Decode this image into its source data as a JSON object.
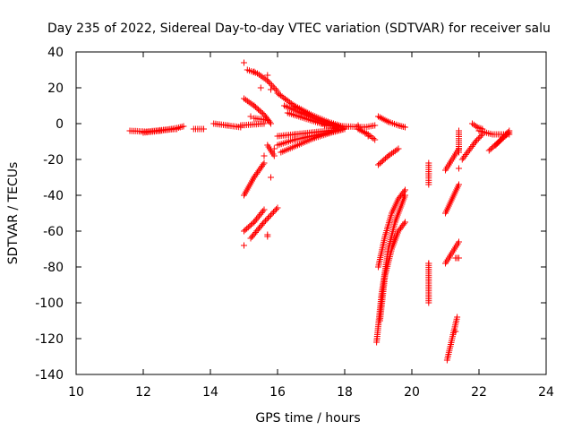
{
  "chart_data": {
    "type": "scatter",
    "title": "Day 235 of 2022, Sidereal Day-to-day VTEC variation (SDTVAR) for receiver salu",
    "xlabel": "GPS time / hours",
    "ylabel": "SDTVAR / TECUs",
    "xlim": [
      10,
      24
    ],
    "ylim": [
      -140,
      40
    ],
    "xticks": [
      10,
      12,
      14,
      16,
      18,
      20,
      22,
      24
    ],
    "yticks": [
      40,
      20,
      0,
      -20,
      -40,
      -60,
      -80,
      -100,
      -120,
      -140
    ],
    "marker": "+",
    "color": "#ff0000",
    "grid": false,
    "segments": [
      {
        "x": [
          11.6,
          12.1,
          12.6,
          13.0
        ],
        "y": [
          -4,
          -4.5,
          -3.5,
          -3
        ]
      },
      {
        "x": [
          12.0,
          12.5,
          13.0,
          13.2
        ],
        "y": [
          -5,
          -4,
          -2.5,
          -1.5
        ]
      },
      {
        "x": [
          13.5,
          13.8
        ],
        "y": [
          -3,
          -3
        ]
      },
      {
        "x": [
          14.1,
          14.5,
          14.9
        ],
        "y": [
          0,
          -1,
          -2
        ]
      },
      {
        "x": [
          14.9,
          15.6
        ],
        "y": [
          -1,
          0
        ]
      },
      {
        "x": [
          15.0,
          15.3,
          15.6
        ],
        "y": [
          -40,
          -30,
          -22
        ]
      },
      {
        "x": [
          15.0,
          15.3,
          15.6
        ],
        "y": [
          -60,
          -55,
          -48
        ]
      },
      {
        "x": [
          15.2,
          15.6,
          16.0
        ],
        "y": [
          -64,
          -55,
          -47
        ]
      },
      {
        "x": [
          15.1,
          15.4,
          15.7,
          16.0
        ],
        "y": [
          30,
          28,
          24,
          18
        ]
      },
      {
        "x": [
          15.0,
          15.3,
          15.6,
          15.8
        ],
        "y": [
          14,
          10,
          5,
          0
        ]
      },
      {
        "x": [
          15.3,
          15.7
        ],
        "y": [
          3,
          2
        ]
      },
      {
        "x": [
          15.7,
          15.9
        ],
        "y": [
          -12,
          -18
        ]
      },
      {
        "x": [
          16.0,
          16.5,
          17.0,
          17.5,
          18.0
        ],
        "y": [
          17,
          10,
          5,
          1,
          -2
        ]
      },
      {
        "x": [
          16.2,
          16.7,
          17.2,
          17.7,
          18.0
        ],
        "y": [
          10,
          6,
          2,
          -1,
          -3
        ]
      },
      {
        "x": [
          16.3,
          16.8,
          17.3,
          17.8
        ],
        "y": [
          6,
          3,
          0,
          -2
        ]
      },
      {
        "x": [
          16.0,
          16.5,
          17.0,
          17.5,
          18.0
        ],
        "y": [
          -7,
          -6,
          -5,
          -4,
          -3
        ]
      },
      {
        "x": [
          16.0,
          16.5,
          17.0,
          17.5,
          18.0
        ],
        "y": [
          -12,
          -9,
          -7,
          -5,
          -3
        ]
      },
      {
        "x": [
          16.1,
          16.6,
          17.1,
          17.6,
          18.0
        ],
        "y": [
          -16,
          -12,
          -8,
          -5,
          -3
        ]
      },
      {
        "x": [
          17.4,
          18.0,
          18.6
        ],
        "y": [
          -1,
          -1.5,
          -2
        ]
      },
      {
        "x": [
          18.4,
          18.7,
          18.9
        ],
        "y": [
          -3,
          -6,
          -9
        ]
      },
      {
        "x": [
          18.6,
          18.9
        ],
        "y": [
          -2,
          -1
        ]
      },
      {
        "x": [
          19.0,
          19.3,
          19.6,
          19.8
        ],
        "y": [
          4,
          1,
          -1,
          -2
        ]
      },
      {
        "x": [
          19.0,
          19.3,
          19.6
        ],
        "y": [
          -23,
          -18,
          -14
        ]
      },
      {
        "x": [
          18.95,
          19.1,
          19.3,
          19.5,
          19.7,
          19.8
        ],
        "y": [
          -122,
          -95,
          -70,
          -55,
          -45,
          -40
        ]
      },
      {
        "x": [
          19.05,
          19.2,
          19.4,
          19.6,
          19.8
        ],
        "y": [
          -110,
          -85,
          -70,
          -60,
          -55
        ]
      },
      {
        "x": [
          19.0,
          19.2,
          19.4,
          19.6,
          19.8
        ],
        "y": [
          -80,
          -63,
          -50,
          -42,
          -37
        ]
      },
      {
        "x": [
          20.5,
          20.5,
          20.5
        ],
        "y": [
          -22,
          -28,
          -34
        ]
      },
      {
        "x": [
          20.5,
          20.5
        ],
        "y": [
          -78,
          -100
        ]
      },
      {
        "x": [
          21.0,
          21.2,
          21.4
        ],
        "y": [
          -26,
          -20,
          -14
        ]
      },
      {
        "x": [
          21.0,
          21.2,
          21.4
        ],
        "y": [
          -50,
          -42,
          -34
        ]
      },
      {
        "x": [
          21.0,
          21.2,
          21.4
        ],
        "y": [
          -78,
          -72,
          -66
        ]
      },
      {
        "x": [
          21.05,
          21.2,
          21.35
        ],
        "y": [
          -132,
          -120,
          -108
        ]
      },
      {
        "x": [
          21.4,
          21.4
        ],
        "y": [
          -4,
          -16
        ]
      },
      {
        "x": [
          21.3,
          21.4
        ],
        "y": [
          -75,
          -75
        ]
      },
      {
        "x": [
          21.5,
          21.9,
          22.1
        ],
        "y": [
          -20,
          -10,
          -6
        ]
      },
      {
        "x": [
          21.8,
          21.95,
          22.1
        ],
        "y": [
          0,
          -2,
          -3
        ]
      },
      {
        "x": [
          22.0,
          22.4,
          22.9
        ],
        "y": [
          -4,
          -6,
          -6
        ]
      },
      {
        "x": [
          22.3,
          22.6,
          22.9
        ],
        "y": [
          -15,
          -10,
          -5
        ]
      },
      {
        "x": [
          22.5,
          22.7,
          22.9
        ],
        "y": [
          -12,
          -8,
          -4
        ]
      }
    ],
    "points": {
      "x": [
        15.0,
        15.0,
        15.2,
        15.3,
        15.5,
        15.6,
        15.7,
        15.8,
        15.9,
        15.8,
        15.7,
        15.6,
        15.7,
        18.4,
        18.7,
        20.5,
        21.4,
        21.3
      ],
      "y": [
        34,
        -68,
        4,
        29,
        20,
        -18,
        -62,
        -30,
        -14,
        19,
        -63,
        0,
        27,
        -1,
        -7,
        -78,
        -25,
        -116
      ]
    }
  }
}
